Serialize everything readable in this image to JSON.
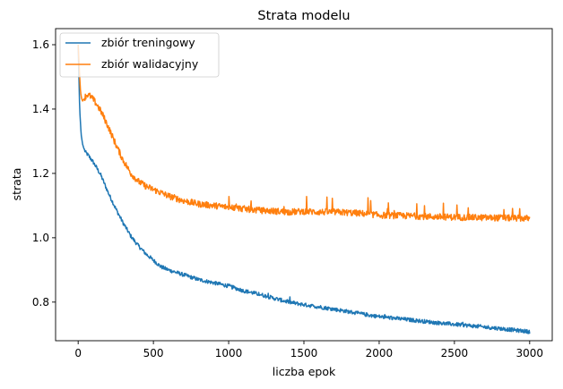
{
  "chart_data": {
    "type": "line",
    "title": "Strata modelu",
    "xlabel": "liczba epok",
    "ylabel": "strata",
    "xlim": [
      -150,
      3150
    ],
    "ylim": [
      0.68,
      1.65
    ],
    "xticks": [
      0,
      500,
      1000,
      1500,
      2000,
      2500,
      3000
    ],
    "xtick_labels": [
      "0",
      "500",
      "1000",
      "1500",
      "2000",
      "2500",
      "3000"
    ],
    "yticks": [
      0.8,
      1.0,
      1.2,
      1.4,
      1.6
    ],
    "ytick_labels": [
      "0.8",
      "1.0",
      "1.2",
      "1.4",
      "1.6"
    ],
    "grid": false,
    "legend_position": "top-left",
    "series": [
      {
        "name": "zbiór treningowy",
        "color": "#1f77b4",
        "x": [
          0,
          10,
          20,
          30,
          40,
          50,
          60,
          80,
          100,
          120,
          150,
          200,
          250,
          300,
          350,
          400,
          450,
          500,
          550,
          600,
          700,
          800,
          900,
          1000,
          1100,
          1200,
          1300,
          1400,
          1500,
          1600,
          1700,
          1800,
          1900,
          2000,
          2200,
          2400,
          2600,
          2800,
          3000
        ],
        "y": [
          1.6,
          1.4,
          1.32,
          1.29,
          1.275,
          1.265,
          1.26,
          1.248,
          1.235,
          1.22,
          1.195,
          1.14,
          1.09,
          1.045,
          1.005,
          0.975,
          0.95,
          0.93,
          0.91,
          0.9,
          0.885,
          0.87,
          0.86,
          0.85,
          0.835,
          0.825,
          0.812,
          0.8,
          0.792,
          0.785,
          0.778,
          0.77,
          0.762,
          0.755,
          0.745,
          0.735,
          0.727,
          0.718,
          0.708
        ],
        "noise": 0.006
      },
      {
        "name": "zbiór walidacyjny",
        "color": "#ff7f0e",
        "x": [
          0,
          5,
          10,
          15,
          20,
          25,
          30,
          40,
          50,
          60,
          80,
          100,
          130,
          160,
          200,
          250,
          300,
          350,
          400,
          450,
          500,
          550,
          600,
          700,
          800,
          900,
          1000,
          1100,
          1200,
          1300,
          1400,
          1500,
          1600,
          1700,
          1800,
          1900,
          2000,
          2200,
          2400,
          2600,
          2800,
          3000
        ],
        "y": [
          1.6,
          1.55,
          1.5,
          1.46,
          1.44,
          1.43,
          1.425,
          1.432,
          1.44,
          1.445,
          1.44,
          1.43,
          1.41,
          1.385,
          1.345,
          1.29,
          1.24,
          1.2,
          1.175,
          1.16,
          1.15,
          1.14,
          1.13,
          1.115,
          1.105,
          1.1,
          1.095,
          1.09,
          1.085,
          1.083,
          1.08,
          1.082,
          1.08,
          1.08,
          1.078,
          1.075,
          1.07,
          1.068,
          1.065,
          1.063,
          1.062,
          1.06
        ],
        "noise": 0.01
      }
    ]
  }
}
